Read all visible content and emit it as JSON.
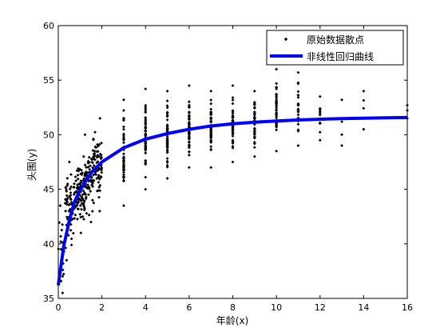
{
  "chart_data": {
    "type": "scatter",
    "xlabel": "年龄(x)",
    "ylabel": "头围(y)",
    "xlim": [
      0,
      16
    ],
    "ylim": [
      35,
      60
    ],
    "xticks": [
      0,
      2,
      4,
      6,
      8,
      10,
      12,
      14,
      16
    ],
    "yticks": [
      35,
      40,
      45,
      50,
      55,
      60
    ],
    "grid": false,
    "legend_position": "top-right",
    "series": [
      {
        "name": "原始数据散点",
        "kind": "scatter",
        "color": "#000000",
        "groups": [
          {
            "x_range": [
              0.0,
              0.3
            ],
            "y_range": [
              35.5,
              43.5
            ],
            "count": 22
          },
          {
            "x_range": [
              0.3,
              0.7
            ],
            "y_range": [
              38.5,
              47.5
            ],
            "count": 55
          },
          {
            "x_range": [
              0.7,
              1.2
            ],
            "y_range": [
              41.0,
              48.0
            ],
            "count": 85
          },
          {
            "x_range": [
              1.2,
              1.6
            ],
            "y_range": [
              42.0,
              50.0
            ],
            "count": 70
          },
          {
            "x_range": [
              1.6,
              2.0
            ],
            "y_range": [
              43.0,
              51.5
            ],
            "count": 70
          },
          {
            "x": 3,
            "y_range": [
              43.5,
              53.2
            ],
            "count": 55
          },
          {
            "x": 4,
            "y_range": [
              45.0,
              54.2
            ],
            "count": 55
          },
          {
            "x": 5,
            "y_range": [
              46.0,
              54.0
            ],
            "count": 50
          },
          {
            "x": 6,
            "y_range": [
              47.0,
              54.5
            ],
            "count": 50
          },
          {
            "x": 7,
            "y_range": [
              47.0,
              54.0
            ],
            "count": 45
          },
          {
            "x": 8,
            "y_range": [
              47.5,
              54.5
            ],
            "count": 45
          },
          {
            "x": 9,
            "y_range": [
              48.0,
              54.0
            ],
            "count": 40
          },
          {
            "x": 10,
            "y_range": [
              48.5,
              56.0
            ],
            "count": 35
          },
          {
            "x": 11,
            "y_range": [
              49.0,
              55.7
            ],
            "count": 25
          },
          {
            "x": 12,
            "y_range": [
              49.5,
              53.5
            ],
            "count": 15
          },
          {
            "x": 13,
            "y_range": [
              49.0,
              53.2
            ],
            "count": 4
          },
          {
            "x": 14,
            "y_range": [
              50.5,
              54.0
            ],
            "count": 4
          },
          {
            "x": 16,
            "y_range": [
              51.5,
              52.7
            ],
            "count": 3
          }
        ]
      },
      {
        "name": "非线性回归曲线",
        "kind": "line",
        "color": "#0000ff",
        "x": [
          0.0,
          0.25,
          0.5,
          0.75,
          1.0,
          1.5,
          2.0,
          3.0,
          4.0,
          5.0,
          6.0,
          7.0,
          8.0,
          9.0,
          10.0,
          11.0,
          12.0,
          13.0,
          14.0,
          15.0,
          16.0
        ],
        "y": [
          36.2,
          39.8,
          42.1,
          43.9,
          44.9,
          46.5,
          47.5,
          48.8,
          49.6,
          50.1,
          50.5,
          50.8,
          51.0,
          51.15,
          51.25,
          51.35,
          51.42,
          51.47,
          51.52,
          51.55,
          51.58
        ]
      }
    ]
  }
}
